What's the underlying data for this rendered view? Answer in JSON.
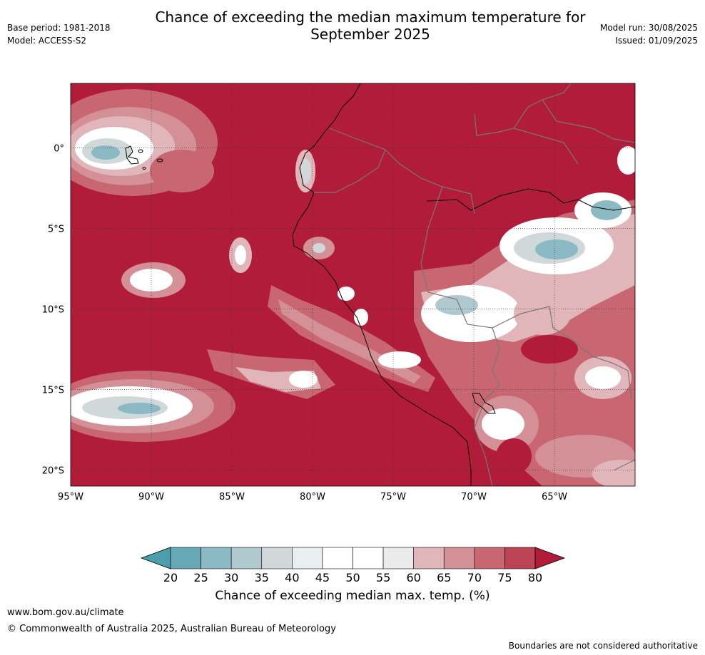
{
  "title": "Chance of exceeding the median maximum temperature for September 2025",
  "title_lines": [
    "Chance of exceeding the median maximum temperature for",
    "September 2025"
  ],
  "meta": {
    "base_period": "Base period: 1981-2018",
    "model": "Model: ACCESS-S2",
    "model_run": "Model run: 30/08/2025",
    "issued": "Issued: 01/09/2025"
  },
  "map": {
    "lat_labels": [
      "0°",
      "5°S",
      "10°S",
      "15°S",
      "20°S"
    ],
    "lat_values": [
      0,
      -5,
      -10,
      -15,
      -20
    ],
    "lon_labels": [
      "95°W",
      "90°W",
      "85°W",
      "80°W",
      "75°W",
      "70°W",
      "65°W"
    ],
    "lon_values": [
      -95,
      -90,
      -85,
      -80,
      -75,
      -70,
      -65
    ],
    "extent": {
      "lon": [
        -95,
        -60
      ],
      "lat": [
        -21,
        4
      ]
    }
  },
  "colorbar": {
    "title": "Chance of exceeding median max. temp. (%)",
    "ticks": [
      "20",
      "25",
      "30",
      "35",
      "40",
      "45",
      "50",
      "55",
      "60",
      "65",
      "70",
      "75",
      "80"
    ],
    "colors": [
      "#67a9b6",
      "#8cbac4",
      "#afc9ce",
      "#d0d8da",
      "#e9eef0",
      "#ffffff",
      "#ffffff",
      "#ecebec",
      "#e0b6bb",
      "#d49097",
      "#c86672",
      "#bc4455"
    ],
    "low_color": "#4c9eae",
    "high_color": "#b01c3a"
  },
  "footer": {
    "url": "www.bom.gov.au/climate",
    "copyright": "© Commonwealth of Australia 2025, Australian Bureau of Meteorology",
    "note": "Boundaries are not considered authoritative"
  }
}
